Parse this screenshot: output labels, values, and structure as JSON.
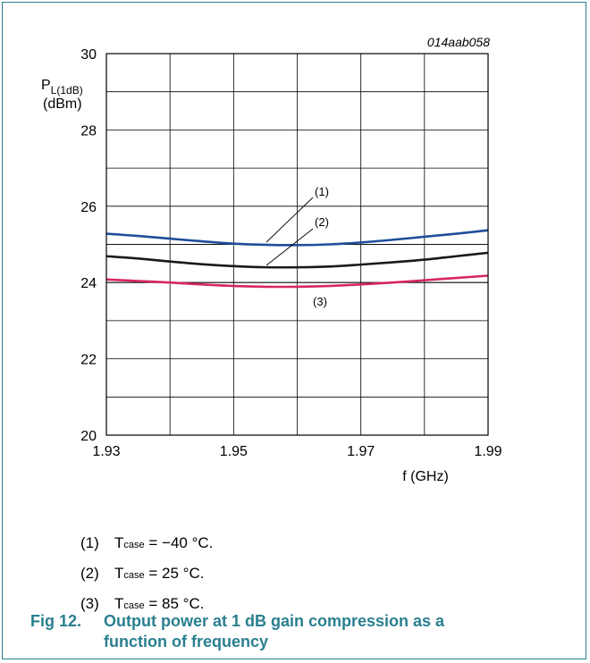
{
  "chart_data": {
    "type": "line",
    "id_label": "014aab058",
    "ylabel_main": "P",
    "ylabel_sub": "L(1dB)",
    "ylabel_unit": "(dBm)",
    "xlabel": "f (GHz)",
    "xlim": [
      1.93,
      1.99
    ],
    "ylim": [
      20,
      30
    ],
    "x_ticks": [
      "1.93",
      "1.95",
      "1.97",
      "1.99"
    ],
    "y_ticks": [
      "20",
      "22",
      "24",
      "26",
      "28",
      "30"
    ],
    "grid": true,
    "x": [
      1.93,
      1.935,
      1.94,
      1.945,
      1.95,
      1.955,
      1.96,
      1.965,
      1.97,
      1.975,
      1.98,
      1.985,
      1.99
    ],
    "series": [
      {
        "name": "(1)",
        "color": "#1f4e9c",
        "values": [
          25.28,
          25.22,
          25.15,
          25.08,
          25.02,
          24.99,
          24.98,
          25.0,
          25.05,
          25.12,
          25.2,
          25.28,
          25.37
        ]
      },
      {
        "name": "(2)",
        "color": "#1a1a1a",
        "values": [
          24.69,
          24.63,
          24.55,
          24.48,
          24.43,
          24.4,
          24.4,
          24.42,
          24.47,
          24.53,
          24.6,
          24.69,
          24.78
        ]
      },
      {
        "name": "(3)",
        "color": "#d6275f",
        "values": [
          24.08,
          24.04,
          24.0,
          23.95,
          23.91,
          23.89,
          23.89,
          23.91,
          23.95,
          24.0,
          24.06,
          24.12,
          24.18
        ]
      }
    ],
    "reference_lines": [
      25.0,
      24.0
    ]
  },
  "notes": [
    {
      "num": "(1)",
      "t": "T",
      "sub": "case",
      "text": " = −40 °C."
    },
    {
      "num": "(2)",
      "t": "T",
      "sub": "case",
      "text": " = 25 °C."
    },
    {
      "num": "(3)",
      "t": "T",
      "sub": "case",
      "text": " = 85 °C."
    }
  ],
  "caption": {
    "fig": "Fig 12.",
    "line1": "Output power at 1 dB gain compression as a",
    "line2": "function of frequency"
  }
}
